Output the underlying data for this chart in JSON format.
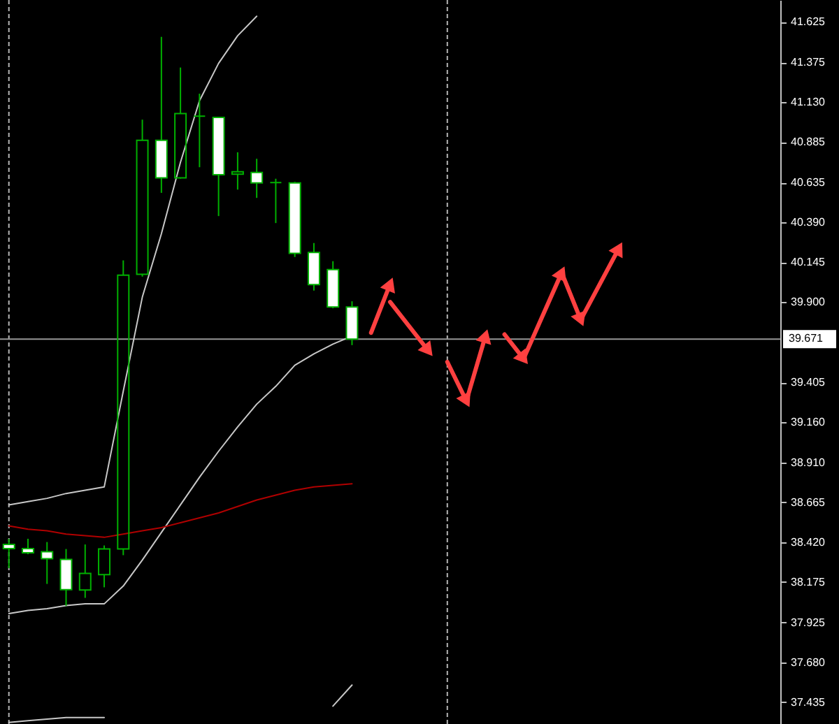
{
  "chart_data": {
    "type": "candlestick",
    "categories": [
      null,
      null,
      null,
      null,
      null,
      null,
      null,
      null,
      null,
      null,
      null,
      null,
      null,
      null,
      null,
      null,
      null,
      null,
      null,
      null,
      null,
      null,
      null,
      null,
      null,
      null,
      null,
      null,
      null,
      null,
      null,
      null,
      null,
      null,
      null,
      null,
      null,
      null,
      null,
      null,
      null
    ],
    "ohlc": [
      [
        38.406,
        38.441,
        38.26,
        38.381
      ],
      [
        38.381,
        38.441,
        38.346,
        38.355
      ],
      [
        38.361,
        38.421,
        38.163,
        38.318
      ],
      [
        38.314,
        38.378,
        38.028,
        38.128
      ],
      [
        38.125,
        38.406,
        38.077,
        38.228
      ],
      [
        38.22,
        38.4,
        38.142,
        38.378
      ],
      [
        38.378,
        40.156,
        38.34,
        40.065
      ],
      [
        40.07,
        41.023,
        40.056,
        40.896
      ],
      [
        40.896,
        41.533,
        40.572,
        40.664
      ],
      [
        40.664,
        41.344,
        40.66,
        41.06
      ],
      [
        41.044,
        41.183,
        40.73,
        41.044
      ],
      [
        41.037,
        41.037,
        40.429,
        40.684
      ],
      [
        40.687,
        40.822,
        40.592,
        40.702
      ],
      [
        40.698,
        40.782,
        40.541,
        40.633
      ],
      [
        40.635,
        40.659,
        40.386,
        40.635
      ],
      [
        40.633,
        40.64,
        40.177,
        40.199
      ],
      [
        40.205,
        40.263,
        39.97,
        40.007
      ],
      [
        40.099,
        40.151,
        39.861,
        39.869
      ],
      [
        39.869,
        39.904,
        39.634,
        39.671
      ],
      null,
      null,
      null,
      null,
      null,
      null,
      null,
      null,
      null,
      null,
      null,
      null,
      null,
      null,
      null,
      null,
      null,
      null,
      null,
      null,
      null,
      null
    ],
    "color": "#00b000",
    "colors": [
      "#ffffff",
      "#ffffff",
      "#ffffff",
      "#ffffff",
      "#00b000",
      "#00b000",
      "#00b000",
      "#00b000",
      "#ffffff",
      "#00b000",
      "#00b000",
      "#ffffff",
      "#00b000",
      "#ffffff",
      "#00b000",
      "#ffffff",
      "#ffffff",
      "#ffffff",
      "#ffffff",
      null,
      null,
      null,
      null,
      null,
      null,
      null,
      null,
      null,
      null,
      null,
      null,
      null,
      null,
      null,
      null,
      null,
      null,
      null,
      null,
      null,
      null
    ],
    "series": [
      {
        "type": "line",
        "color": "#c8c8c8",
        "values": [
          38.65,
          38.67,
          38.69,
          38.72,
          38.74,
          38.76,
          39.35,
          39.93,
          40.32,
          40.76,
          41.14,
          41.37,
          41.54,
          41.66,
          null,
          null,
          null,
          null,
          null,
          null,
          null,
          null,
          null,
          null,
          null,
          null,
          null,
          null,
          null,
          null,
          null,
          null,
          null,
          null,
          null,
          null,
          null,
          null,
          null,
          null,
          null
        ]
      },
      {
        "type": "line",
        "color": "#c8c8c8",
        "values": [
          37.98,
          38.0,
          38.01,
          38.03,
          38.04,
          38.04,
          38.15,
          38.31,
          38.48,
          38.65,
          38.82,
          38.98,
          39.13,
          39.27,
          39.38,
          39.51,
          39.58,
          39.64,
          39.69,
          null,
          null,
          null,
          null,
          null,
          null,
          null,
          null,
          null,
          null,
          null,
          null,
          null,
          null,
          null,
          null,
          null,
          null,
          null,
          null,
          null,
          null
        ]
      },
      {
        "type": "line",
        "color": "#c8c8c8",
        "values": [
          37.31,
          37.32,
          37.33,
          37.34,
          37.34,
          37.34,
          null,
          null,
          null,
          null,
          null,
          null,
          null,
          null,
          null,
          null,
          null,
          37.41,
          37.54,
          null,
          null,
          null,
          null,
          null,
          null,
          null,
          null,
          null,
          null,
          null,
          null,
          null,
          null,
          null,
          null,
          null,
          null,
          null,
          null,
          null,
          null
        ]
      },
      {
        "type": "line",
        "color": "#b00000",
        "values": [
          38.52,
          38.5,
          38.49,
          38.47,
          38.46,
          38.45,
          38.47,
          38.49,
          38.51,
          38.54,
          38.57,
          38.6,
          38.64,
          38.68,
          38.71,
          38.74,
          38.76,
          38.77,
          38.78,
          null,
          null,
          null,
          null,
          null,
          null,
          null,
          null,
          null,
          null,
          null,
          null,
          null,
          null,
          null,
          null,
          null,
          null,
          null,
          null,
          null,
          null
        ]
      },
      {
        "type": "line",
        "color": "#ff4040",
        "marker": "triangle",
        "values": [
          null,
          null,
          null,
          null,
          null,
          null,
          null,
          null,
          null,
          null,
          null,
          null,
          null,
          null,
          null,
          null,
          null,
          null,
          null,
          39.71,
          40.01,
          null,
          null,
          null,
          null,
          null,
          null,
          null,
          null,
          null,
          null,
          null,
          null,
          null,
          null,
          null,
          null,
          null,
          null,
          null,
          null
        ]
      },
      {
        "type": "line",
        "color": "#ff4040",
        "marker": "triangle",
        "values": [
          null,
          null,
          null,
          null,
          null,
          null,
          null,
          null,
          null,
          null,
          null,
          null,
          null,
          null,
          null,
          null,
          null,
          null,
          null,
          null,
          39.9,
          null,
          39.6,
          null,
          null,
          null,
          null,
          null,
          null,
          null,
          null,
          null,
          null,
          null,
          null,
          null,
          null,
          null,
          null,
          null,
          null
        ]
      },
      {
        "type": "line",
        "color": "#ff4040",
        "marker": "triangle",
        "values": [
          null,
          null,
          null,
          null,
          null,
          null,
          null,
          null,
          null,
          null,
          null,
          null,
          null,
          null,
          null,
          null,
          null,
          null,
          null,
          null,
          null,
          null,
          null,
          39.53,
          39.29,
          null,
          null,
          null,
          null,
          null,
          null,
          null,
          null,
          null,
          null,
          null,
          null,
          null,
          null,
          null,
          null
        ]
      },
      {
        "type": "line",
        "color": "#ff4040",
        "marker": "triangle",
        "values": [
          null,
          null,
          null,
          null,
          null,
          null,
          null,
          null,
          null,
          null,
          null,
          null,
          null,
          null,
          null,
          null,
          null,
          null,
          null,
          null,
          null,
          null,
          null,
          null,
          39.29,
          39.69,
          null,
          null,
          null,
          null,
          null,
          null,
          null,
          null,
          null,
          null,
          null,
          null,
          null,
          null,
          null
        ]
      },
      {
        "type": "line",
        "color": "#ff4040",
        "marker": "triangle",
        "values": [
          null,
          null,
          null,
          null,
          null,
          null,
          null,
          null,
          null,
          null,
          null,
          null,
          null,
          null,
          null,
          null,
          null,
          null,
          null,
          null,
          null,
          null,
          null,
          null,
          null,
          null,
          39.7,
          39.55,
          null,
          null,
          null,
          null,
          null,
          null,
          null,
          null,
          null,
          null,
          null,
          null,
          null
        ]
      },
      {
        "type": "line",
        "color": "#ff4040",
        "marker": "triangle",
        "values": [
          null,
          null,
          null,
          null,
          null,
          null,
          null,
          null,
          null,
          null,
          null,
          null,
          null,
          null,
          null,
          null,
          null,
          null,
          null,
          null,
          null,
          null,
          null,
          null,
          null,
          null,
          null,
          39.55,
          null,
          40.08,
          null,
          null,
          null,
          null,
          null,
          null,
          null,
          null,
          null,
          null,
          null
        ]
      },
      {
        "type": "line",
        "color": "#ff4040",
        "marker": "triangle",
        "values": [
          null,
          null,
          null,
          null,
          null,
          null,
          null,
          null,
          null,
          null,
          null,
          null,
          null,
          null,
          null,
          null,
          null,
          null,
          null,
          null,
          null,
          null,
          null,
          null,
          null,
          null,
          null,
          null,
          null,
          40.08,
          39.79,
          null,
          null,
          null,
          null,
          null,
          null,
          null,
          null,
          null,
          null
        ]
      },
      {
        "type": "line",
        "color": "#ff4040",
        "marker": "triangle",
        "values": [
          null,
          null,
          null,
          null,
          null,
          null,
          null,
          null,
          null,
          null,
          null,
          null,
          null,
          null,
          null,
          null,
          null,
          null,
          null,
          null,
          null,
          null,
          null,
          null,
          null,
          null,
          null,
          null,
          null,
          null,
          39.79,
          null,
          40.23,
          null,
          null,
          null,
          null,
          null,
          null,
          null,
          null
        ]
      }
    ],
    "ylim": [
      37.3,
      41.76
    ],
    "yticks": [
      41.625,
      41.375,
      {
        "value": 41.13,
        "label": "41.130"
      },
      40.885,
      40.635,
      {
        "value": 40.39,
        "label": "40.390"
      },
      40.145,
      {
        "value": 39.9,
        "label": "39.900"
      },
      39.405,
      {
        "value": 39.16,
        "label": "39.160"
      },
      {
        "value": 38.91,
        "label": "38.910"
      },
      38.665,
      {
        "value": 38.42,
        "label": "38.420"
      },
      38.175,
      37.925,
      {
        "value": 37.68,
        "label": "37.680"
      },
      37.435
    ],
    "ref_lines": [
      {
        "axis": "y",
        "value": 39.671,
        "label": "39.671",
        "color": "#969696"
      }
    ],
    "tick_labels": "y"
  }
}
